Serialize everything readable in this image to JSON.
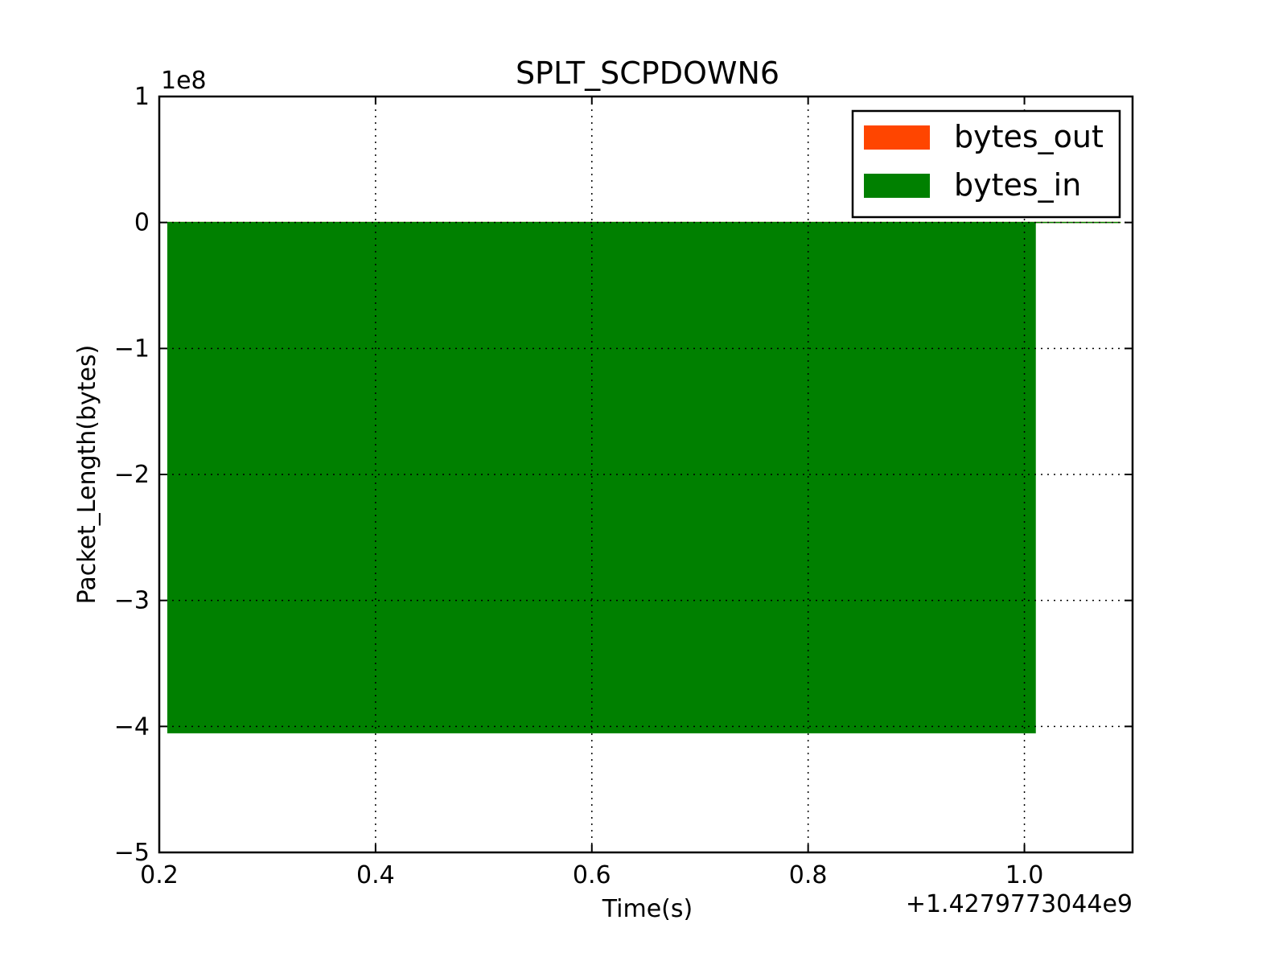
{
  "chart_data": {
    "type": "area",
    "title": "SPLT_SCPDOWN6",
    "xlabel": "Time(s)",
    "ylabel": "Packet_Length(bytes)",
    "x_offset_label": "+1.4279773044e9",
    "y_multiplier_label": "1e8",
    "xlim": [
      0.2,
      1.1
    ],
    "ylim": [
      -5,
      1
    ],
    "xticks": [
      0.2,
      0.4,
      0.6,
      0.8,
      1.0
    ],
    "xtick_labels": [
      "0.2",
      "0.4",
      "0.6",
      "0.8",
      "1.0"
    ],
    "yticks": [
      1,
      0,
      -1,
      -2,
      -3,
      -4,
      -5
    ],
    "ytick_labels": [
      "1",
      "0",
      "−1",
      "−2",
      "−3",
      "−4",
      "−5"
    ],
    "grid": true,
    "legend_position": "top-right",
    "series": [
      {
        "name": "bytes_out",
        "color": "#ff4500",
        "x": [
          0.208,
          1.089
        ],
        "y": [
          0,
          0
        ]
      },
      {
        "name": "bytes_in",
        "color": "#008000",
        "x": [
          0.208,
          1.01,
          1.01,
          1.089
        ],
        "y": [
          -4.05,
          -4.05,
          0,
          0
        ]
      }
    ]
  }
}
